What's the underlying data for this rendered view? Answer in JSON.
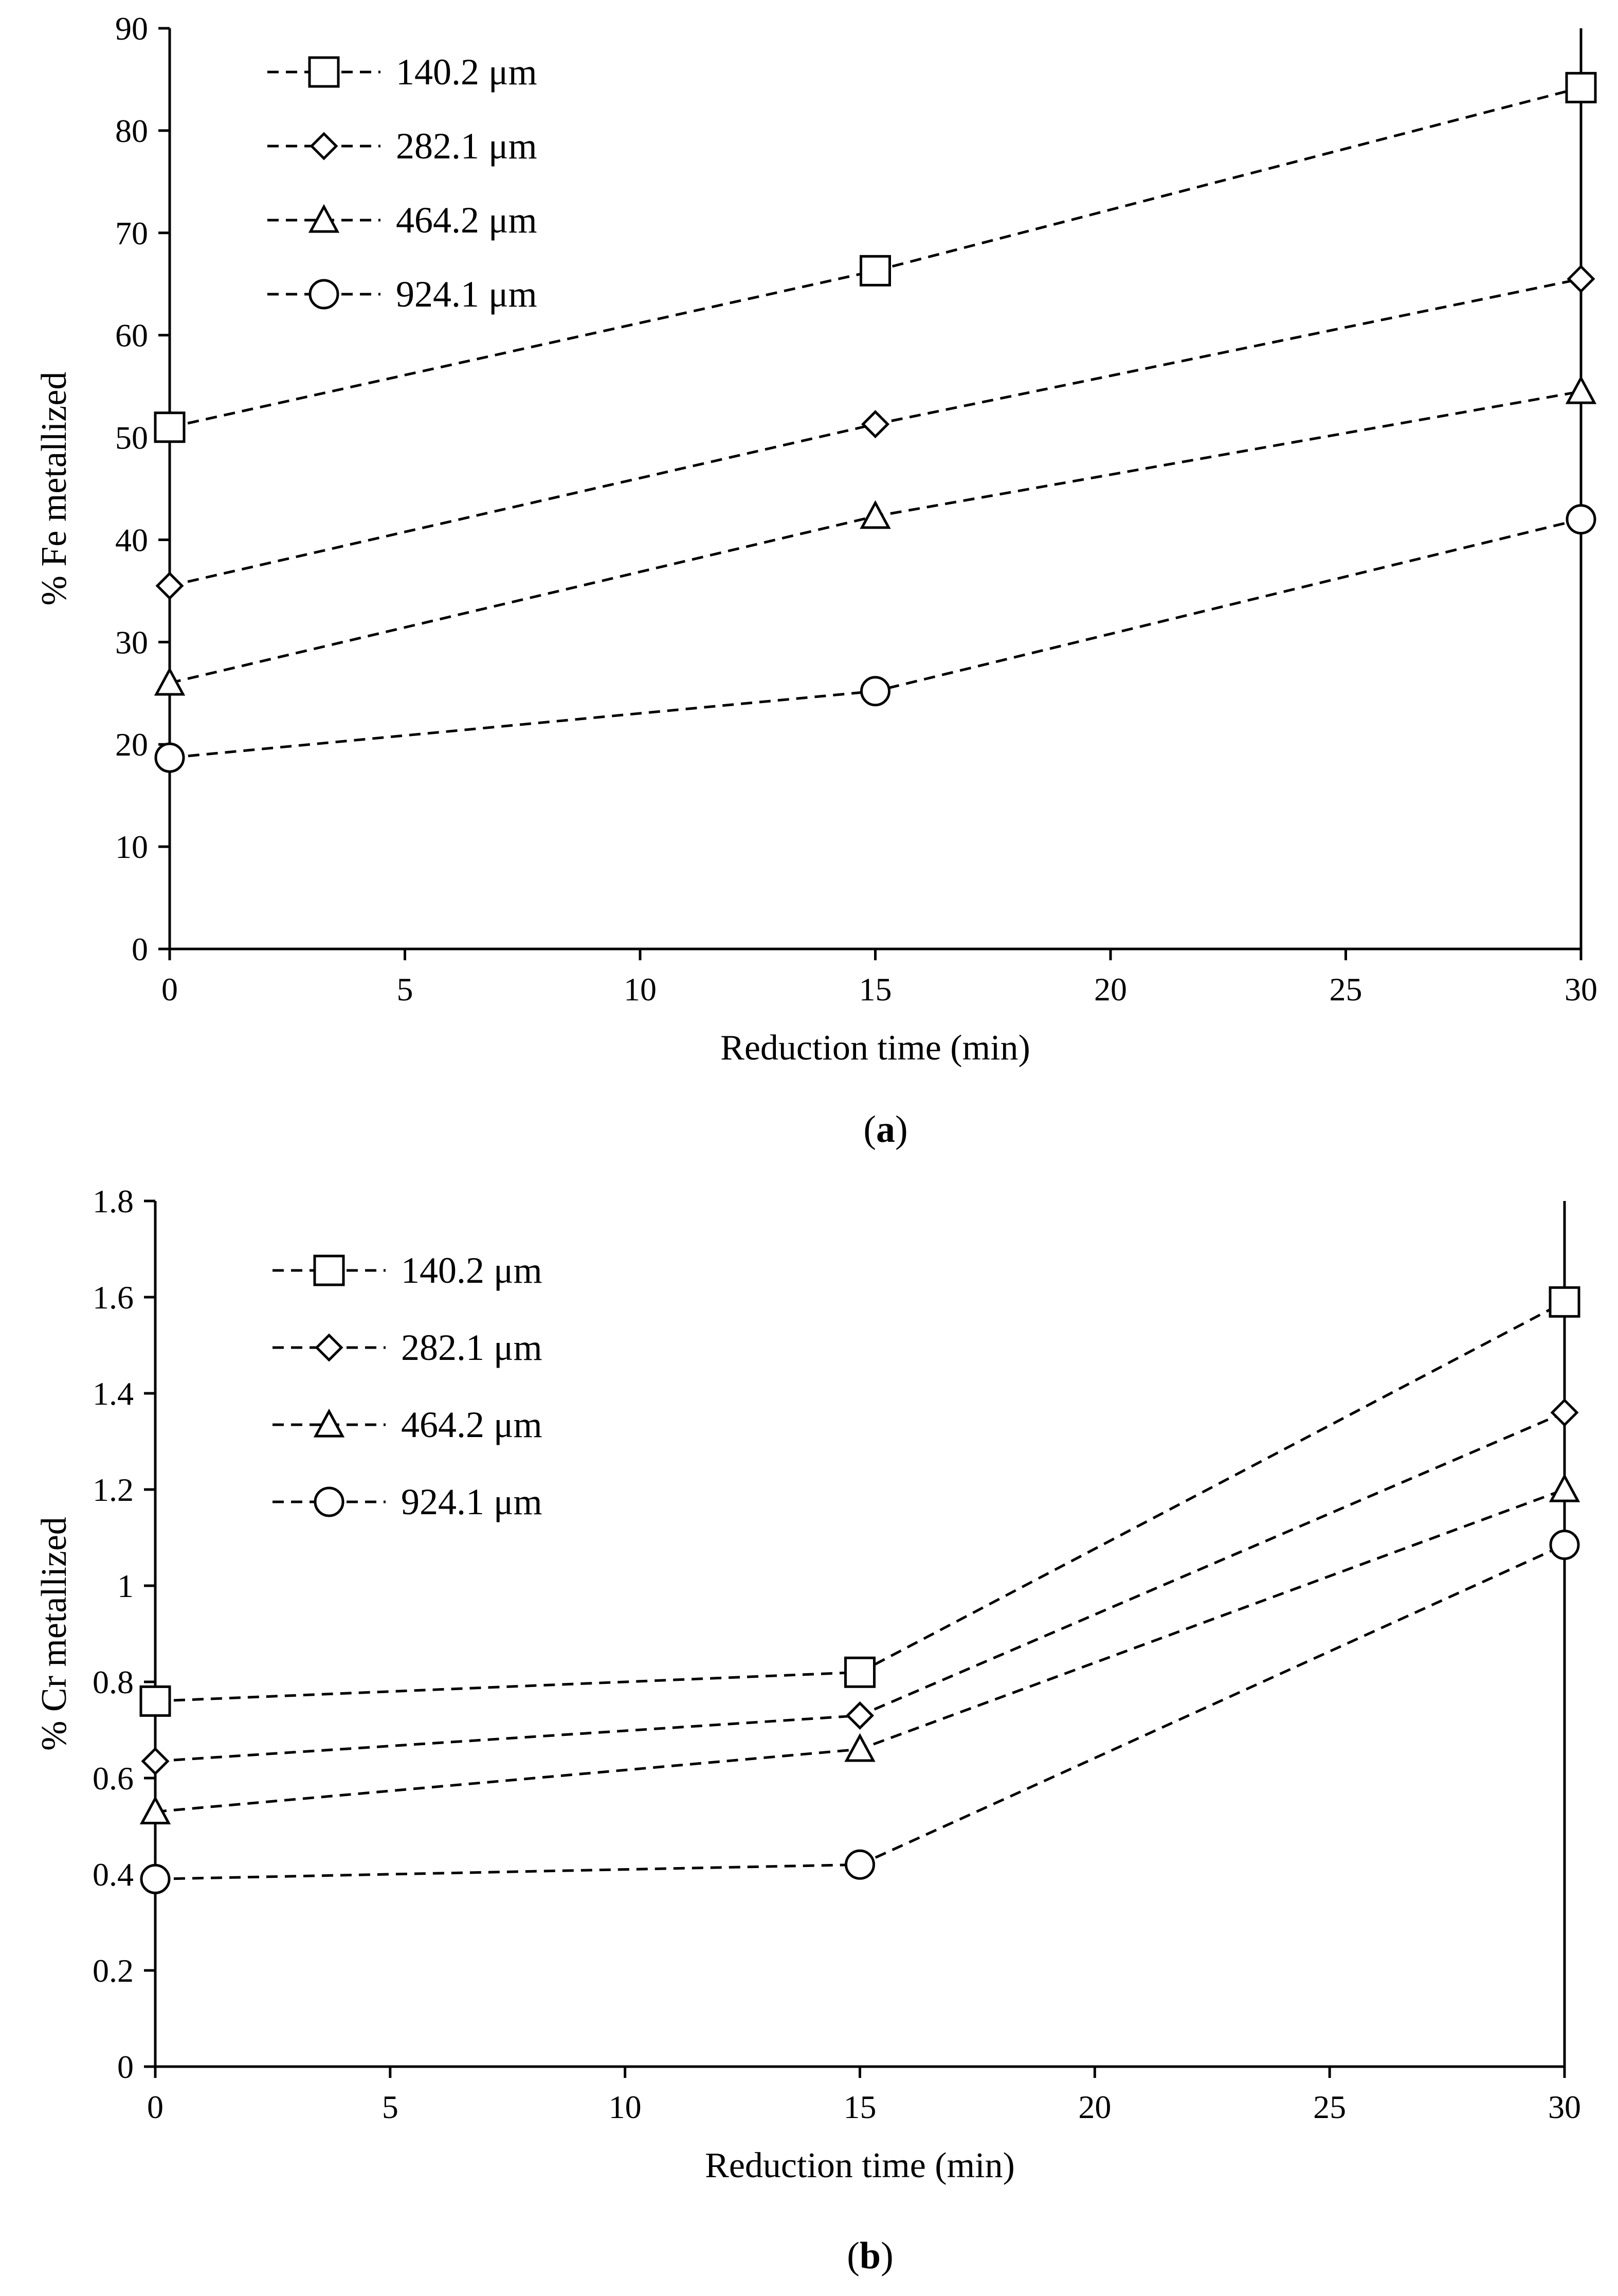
{
  "chart_data": [
    {
      "id": "a",
      "type": "line",
      "caption_open": "(",
      "caption_letter": "a",
      "caption_close": ")",
      "xlabel": "Reduction time (min)",
      "ylabel": "% Fe metallized",
      "xlim": [
        0,
        30
      ],
      "ylim": [
        0,
        90
      ],
      "xticks": [
        0,
        5,
        10,
        15,
        20,
        25,
        30
      ],
      "yticks": [
        0,
        10,
        20,
        30,
        40,
        50,
        60,
        70,
        80,
        90
      ],
      "grid": false,
      "legend_position": "top-left",
      "x": [
        0,
        15,
        30
      ],
      "series": [
        {
          "name": "140.2 μm",
          "marker": "square",
          "values": [
            51.0,
            66.3,
            84.2
          ]
        },
        {
          "name": "282.1 μm",
          "marker": "diamond",
          "values": [
            35.5,
            51.3,
            65.5
          ]
        },
        {
          "name": "464.2  μm",
          "marker": "triangle",
          "values": [
            26.0,
            42.3,
            54.5
          ]
        },
        {
          "name": "924.1 μm",
          "marker": "circle",
          "values": [
            18.7,
            25.2,
            42.0
          ]
        }
      ]
    },
    {
      "id": "b",
      "type": "line",
      "caption_open": "(",
      "caption_letter": "b",
      "caption_close": ")",
      "xlabel": "Reduction time (min)",
      "ylabel": "% Cr metallized",
      "xlim": [
        0,
        30
      ],
      "ylim": [
        0,
        1.8
      ],
      "xticks": [
        0,
        5,
        10,
        15,
        20,
        25,
        30
      ],
      "yticks": [
        0,
        0.2,
        0.4,
        0.6,
        0.8,
        1,
        1.2,
        1.4,
        1.6,
        1.8
      ],
      "ytick_labels": [
        "0",
        "0.2",
        "0.4",
        "0.6",
        "0.8",
        "1",
        "1.2",
        "1.4",
        "1.6",
        "1.8"
      ],
      "grid": false,
      "legend_position": "top-left",
      "x": [
        0,
        15,
        30
      ],
      "series": [
        {
          "name": "140.2 μm",
          "marker": "square",
          "values": [
            0.76,
            0.82,
            1.59
          ]
        },
        {
          "name": "282.1 μm",
          "marker": "diamond",
          "values": [
            0.635,
            0.73,
            1.36
          ]
        },
        {
          "name": "464.2  μm",
          "marker": "triangle",
          "values": [
            0.53,
            0.66,
            1.2
          ]
        },
        {
          "name": "924.1 μm",
          "marker": "circle",
          "values": [
            0.39,
            0.42,
            1.085
          ]
        }
      ]
    }
  ]
}
